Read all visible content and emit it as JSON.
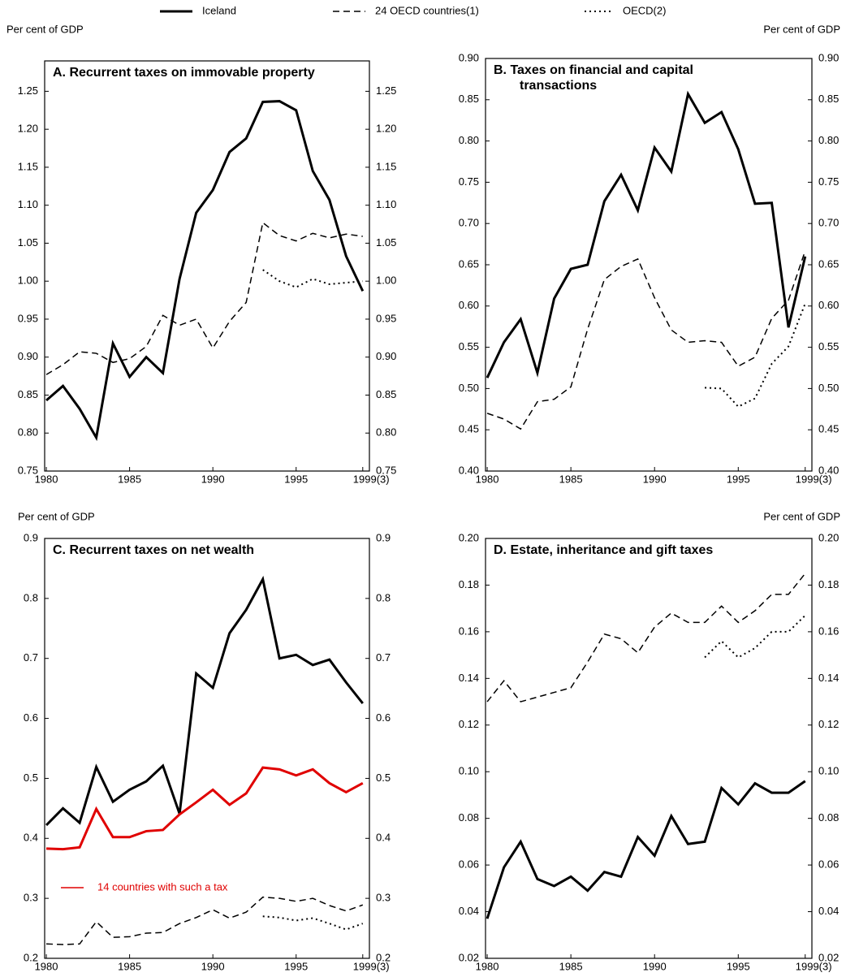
{
  "legend": [
    {
      "name": "Iceland",
      "style": "solid"
    },
    {
      "name": "24 OECD countries(1)",
      "style": "dashed"
    },
    {
      "name": "OECD(2)",
      "style": "dotted"
    }
  ],
  "chart_data": [
    {
      "type": "line",
      "title": "A. Recurrent taxes on immovable property",
      "ylabel": "Per cent of GDP",
      "ylabel_side": "left",
      "x": [
        1980,
        1981,
        1982,
        1983,
        1984,
        1985,
        1986,
        1987,
        1988,
        1989,
        1990,
        1991,
        1992,
        1993,
        1994,
        1995,
        1996,
        1997,
        1998,
        1999
      ],
      "xlim": [
        1979.9,
        1999.4
      ],
      "xticks": [
        1980,
        1985,
        1990,
        1995,
        {
          "value": 1999,
          "label": "1999(3)"
        }
      ],
      "ylim": [
        0.75,
        1.29
      ],
      "yticks": [
        0.75,
        {
          "value": 0.8,
          "label": "0.80"
        },
        0.85,
        {
          "value": 0.9,
          "label": "0.90"
        },
        0.95,
        {
          "value": 1,
          "label": "1.00"
        },
        1.05,
        {
          "value": 1.1,
          "label": "1.10"
        },
        1.15,
        {
          "value": 1.2,
          "label": "1.20"
        },
        1.25
      ],
      "series": [
        {
          "style": "solid",
          "color": "#000000",
          "values": [
            0.843,
            0.862,
            0.832,
            0.794,
            0.918,
            0.874,
            0.9,
            0.879,
            1.003,
            1.09,
            1.12,
            1.17,
            1.188,
            1.236,
            1.237,
            1.225,
            1.145,
            1.107,
            1.033,
            0.987
          ]
        },
        {
          "style": "dashed",
          "color": "#000000",
          "values": [
            0.877,
            0.89,
            0.907,
            0.905,
            0.893,
            0.898,
            0.914,
            0.955,
            0.942,
            0.95,
            0.912,
            0.947,
            0.972,
            1.077,
            1.06,
            1.053,
            1.063,
            1.057,
            1.062,
            1.059
          ]
        },
        {
          "style": "dotted",
          "color": "#000000",
          "values": [
            null,
            null,
            null,
            null,
            null,
            null,
            null,
            null,
            null,
            null,
            null,
            null,
            null,
            1.015,
            1.0,
            0.992,
            1.003,
            0.996,
            0.998,
            1.0
          ]
        }
      ]
    },
    {
      "type": "line",
      "title": "B. Taxes on financial and capital\ntransactions",
      "ylabel": "Per cent of GDP",
      "ylabel_side": "right",
      "x": [
        1980,
        1981,
        1982,
        1983,
        1984,
        1985,
        1986,
        1987,
        1988,
        1989,
        1990,
        1991,
        1992,
        1993,
        1994,
        1995,
        1996,
        1997,
        1998,
        1999
      ],
      "xlim": [
        1979.9,
        1999.4
      ],
      "xticks": [
        1980,
        1985,
        1990,
        1995,
        {
          "value": 1999,
          "label": "1999(3)"
        }
      ],
      "ylim": [
        0.4,
        0.9
      ],
      "yticks": [
        {
          "value": 0.4,
          "label": "0.40"
        },
        0.45,
        {
          "value": 0.5,
          "label": "0.50"
        },
        0.55,
        {
          "value": 0.6,
          "label": "0.60"
        },
        0.65,
        {
          "value": 0.7,
          "label": "0.70"
        },
        0.75,
        {
          "value": 0.8,
          "label": "0.80"
        },
        0.85,
        {
          "value": 0.9,
          "label": "0.90"
        }
      ],
      "series": [
        {
          "style": "solid",
          "color": "#000000",
          "values": [
            0.513,
            0.556,
            0.584,
            0.519,
            0.609,
            0.645,
            0.65,
            0.727,
            0.759,
            0.716,
            0.792,
            0.763,
            0.857,
            0.822,
            0.835,
            0.79,
            0.724,
            0.725,
            0.574,
            0.66
          ]
        },
        {
          "style": "dashed",
          "color": "#000000",
          "values": [
            0.47,
            0.463,
            0.451,
            0.484,
            0.487,
            0.502,
            0.572,
            0.632,
            0.648,
            0.657,
            0.61,
            0.571,
            0.556,
            0.558,
            0.556,
            0.527,
            0.538,
            0.585,
            0.607,
            0.667
          ]
        },
        {
          "style": "dotted",
          "color": "#000000",
          "values": [
            null,
            null,
            null,
            null,
            null,
            null,
            null,
            null,
            null,
            null,
            null,
            null,
            null,
            0.501,
            0.5,
            0.478,
            0.488,
            0.53,
            0.551,
            0.603
          ]
        }
      ]
    },
    {
      "type": "line",
      "title": "C. Recurrent taxes on net wealth",
      "ylabel": "Per cent of GDP",
      "ylabel_side": "left",
      "x": [
        1980,
        1981,
        1982,
        1983,
        1984,
        1985,
        1986,
        1987,
        1988,
        1989,
        1990,
        1991,
        1992,
        1993,
        1994,
        1995,
        1996,
        1997,
        1998,
        1999
      ],
      "xlim": [
        1979.9,
        1999.4
      ],
      "xticks": [
        1980,
        1985,
        1990,
        1995,
        {
          "value": 1999,
          "label": "1999(3)"
        }
      ],
      "ylim": [
        0.2,
        0.9
      ],
      "yticks": [
        0.2,
        0.3,
        0.4,
        0.5,
        0.6,
        0.7,
        0.8,
        0.9
      ],
      "series": [
        {
          "style": "solid",
          "color": "#000000",
          "values": [
            0.422,
            0.45,
            0.426,
            0.519,
            0.461,
            0.481,
            0.495,
            0.521,
            0.441,
            0.675,
            0.651,
            0.742,
            0.781,
            0.832,
            0.7,
            0.706,
            0.689,
            0.698,
            0.66,
            0.625
          ]
        },
        {
          "name": "14 countries with such a tax",
          "style": "solid",
          "color": "#e00000",
          "values": [
            0.383,
            0.382,
            0.385,
            0.449,
            0.402,
            0.402,
            0.412,
            0.414,
            0.44,
            0.46,
            0.481,
            0.456,
            0.475,
            0.518,
            0.515,
            0.505,
            0.515,
            0.492,
            0.477,
            0.492
          ]
        },
        {
          "style": "dashed",
          "color": "#000000",
          "values": [
            0.224,
            0.223,
            0.224,
            0.261,
            0.235,
            0.236,
            0.242,
            0.243,
            0.258,
            0.268,
            0.281,
            0.267,
            0.277,
            0.302,
            0.3,
            0.295,
            0.3,
            0.288,
            0.279,
            0.289
          ]
        },
        {
          "style": "dotted",
          "color": "#000000",
          "values": [
            null,
            null,
            null,
            null,
            null,
            null,
            null,
            null,
            null,
            null,
            null,
            null,
            null,
            0.27,
            0.268,
            0.263,
            0.267,
            0.258,
            0.248,
            0.258
          ]
        }
      ]
    },
    {
      "type": "line",
      "title": "D. Estate, inheritance and gift taxes",
      "ylabel": "Per cent of GDP",
      "ylabel_side": "right",
      "x": [
        1980,
        1981,
        1982,
        1983,
        1984,
        1985,
        1986,
        1987,
        1988,
        1989,
        1990,
        1991,
        1992,
        1993,
        1994,
        1995,
        1996,
        1997,
        1998,
        1999
      ],
      "xlim": [
        1979.9,
        1999.4
      ],
      "xticks": [
        1980,
        1985,
        1990,
        1995,
        {
          "value": 1999,
          "label": "1999(3)"
        }
      ],
      "ylim": [
        0.02,
        0.2
      ],
      "yticks": [
        0.02,
        0.04,
        0.06,
        0.08,
        {
          "value": 0.1,
          "label": "0.10"
        },
        0.12,
        0.14,
        0.16,
        0.18,
        {
          "value": 0.2,
          "label": "0.20"
        }
      ],
      "series": [
        {
          "style": "solid",
          "color": "#000000",
          "values": [
            0.037,
            0.059,
            0.07,
            0.054,
            0.051,
            0.055,
            0.049,
            0.057,
            0.055,
            0.072,
            0.064,
            0.081,
            0.069,
            0.07,
            0.093,
            0.086,
            0.095,
            0.091,
            0.091,
            0.096
          ]
        },
        {
          "style": "dashed",
          "color": "#000000",
          "values": [
            0.13,
            0.139,
            0.13,
            0.132,
            0.134,
            0.136,
            0.147,
            0.159,
            0.157,
            0.151,
            0.162,
            0.168,
            0.164,
            0.164,
            0.171,
            0.164,
            0.169,
            0.176,
            0.176,
            0.185
          ]
        },
        {
          "style": "dotted",
          "color": "#000000",
          "values": [
            null,
            null,
            null,
            null,
            null,
            null,
            null,
            null,
            null,
            null,
            null,
            null,
            null,
            0.149,
            0.156,
            0.149,
            0.153,
            0.16,
            0.16,
            0.167
          ]
        }
      ]
    }
  ]
}
